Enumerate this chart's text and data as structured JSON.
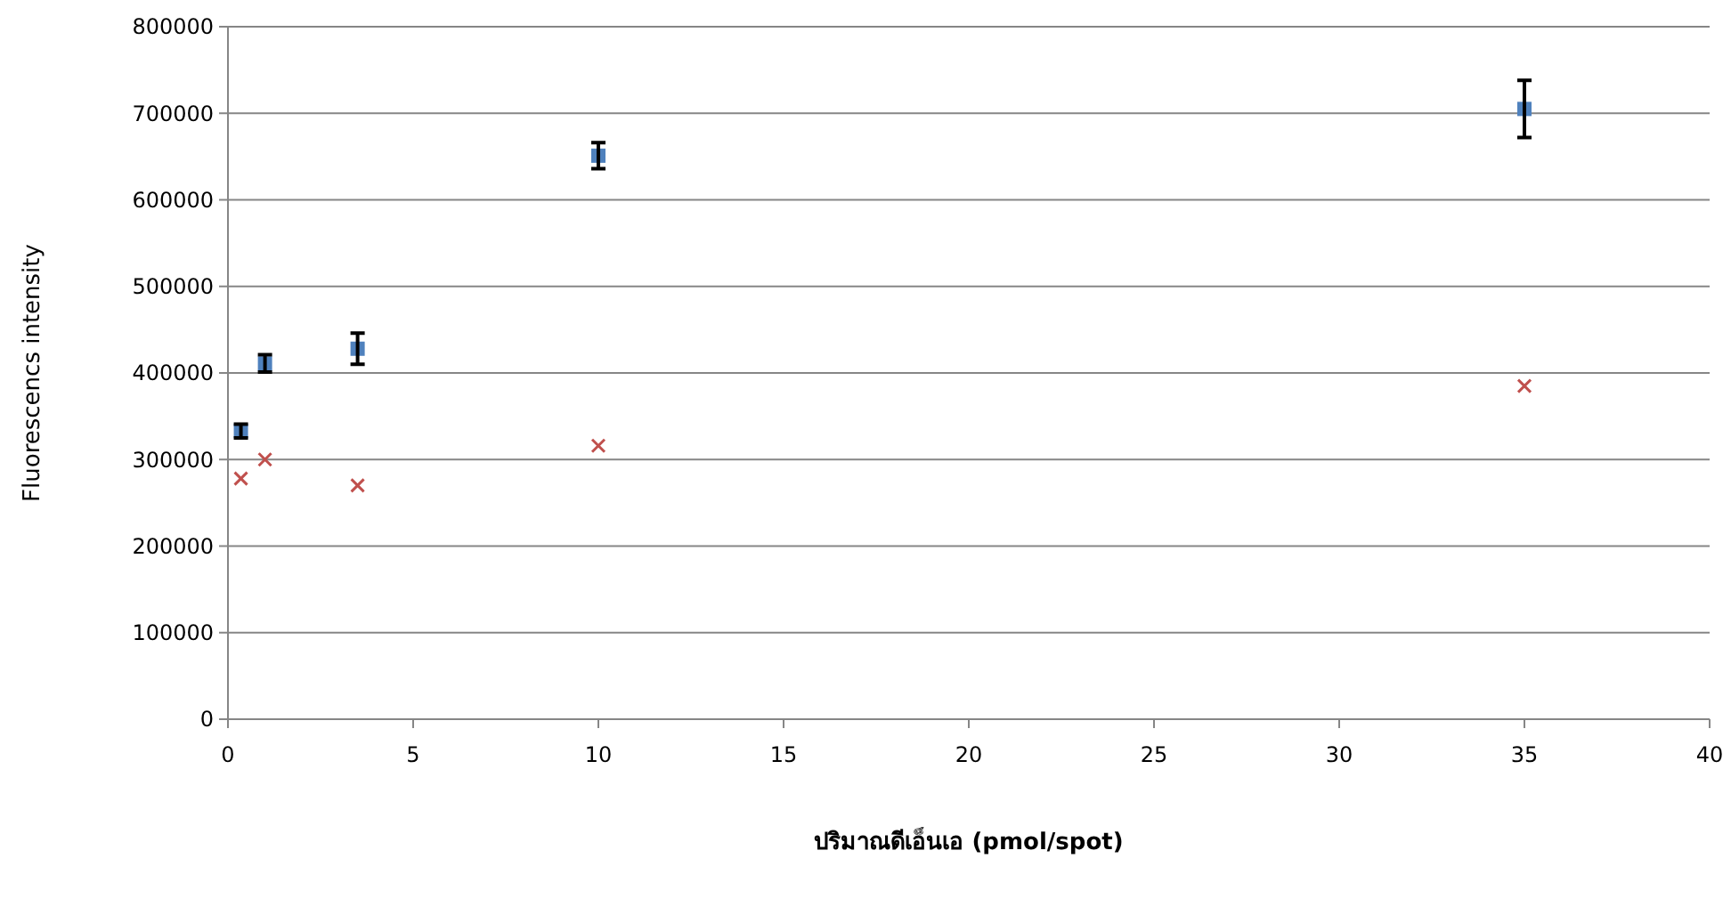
{
  "chart_data": {
    "type": "scatter",
    "xlabel": "ปริมาณดีเอ็นเอ (pmol/spot)",
    "ylabel": "Fluorescencs intensity",
    "xlim": [
      0,
      40
    ],
    "xticks": [
      0,
      5,
      10,
      15,
      20,
      25,
      30,
      35,
      40
    ],
    "ylim": [
      0,
      800000
    ],
    "yticks": [
      0,
      100000,
      200000,
      300000,
      400000,
      500000,
      600000,
      700000,
      800000
    ],
    "grid": "y",
    "series": [
      {
        "color": "#4f81bd",
        "marker": "square",
        "x": [
          0.35,
          1,
          3.5,
          10,
          35
        ],
        "values": [
          333000,
          411000,
          428000,
          651000,
          705000
        ],
        "errors": [
          8000,
          10000,
          18000,
          15000,
          33000
        ]
      },
      {
        "color": "#c0504d",
        "marker": "cross",
        "x": [
          0.35,
          1,
          3.5,
          10,
          35
        ],
        "values": [
          278000,
          300000,
          270000,
          316000,
          385000
        ]
      }
    ]
  }
}
